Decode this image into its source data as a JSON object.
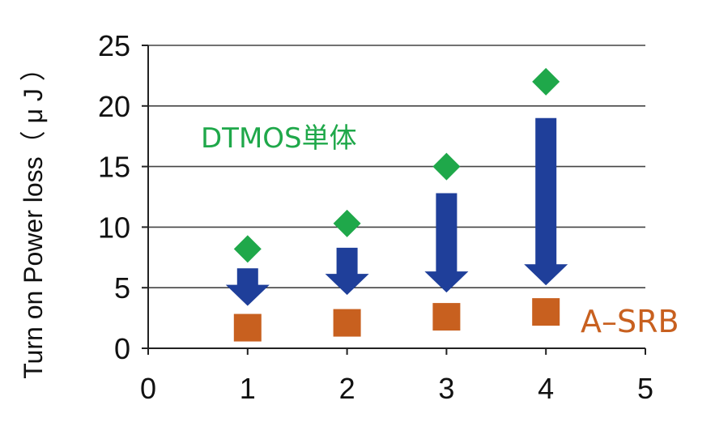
{
  "chart_data": {
    "type": "scatter",
    "title": "",
    "xlabel": "",
    "ylabel": "Turn on Power loss（ μ J ）",
    "xlim": [
      0,
      5
    ],
    "ylim": [
      0,
      25
    ],
    "x_ticks": [
      "0",
      "1",
      "2",
      "3",
      "4",
      "5"
    ],
    "y_ticks": [
      "0",
      "5",
      "10",
      "15",
      "20",
      "25"
    ],
    "grid": "horizontal",
    "series": [
      {
        "name": "DTMOS単体",
        "marker": "diamond",
        "color": "#1fa84a",
        "points": [
          {
            "x": 1,
            "y": 8.2
          },
          {
            "x": 2,
            "y": 10.3
          },
          {
            "x": 3,
            "y": 15.0
          },
          {
            "x": 4,
            "y": 22.0
          }
        ]
      },
      {
        "name": "A–SRB",
        "marker": "square",
        "color": "#c8601f",
        "points": [
          {
            "x": 1,
            "y": 1.7
          },
          {
            "x": 2,
            "y": 2.1
          },
          {
            "x": 3,
            "y": 2.6
          },
          {
            "x": 4,
            "y": 3.0
          }
        ]
      }
    ],
    "arrows": {
      "color": "#1f3f9a",
      "items": [
        {
          "x": 1,
          "from": 6.6,
          "to": 3.5
        },
        {
          "x": 2,
          "from": 8.3,
          "to": 4.4
        },
        {
          "x": 3,
          "from": 12.8,
          "to": 4.6
        },
        {
          "x": 4,
          "from": 19.0,
          "to": 5.2
        }
      ]
    }
  }
}
